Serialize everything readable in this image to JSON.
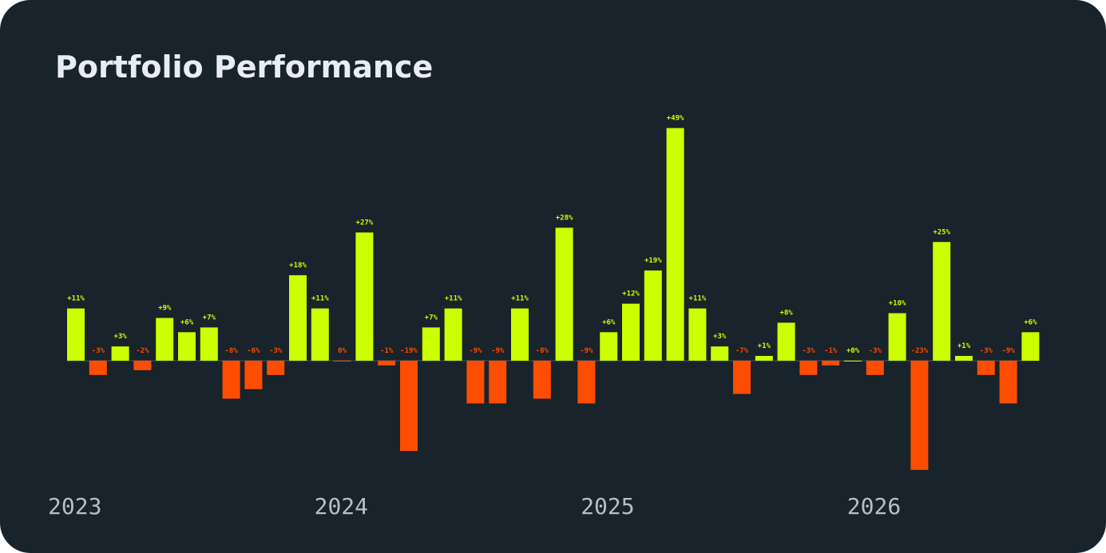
{
  "title": "Portfolio Performance",
  "colors": {
    "background": "#18232c",
    "positive": "#ccff00",
    "negative": "#ff4d00",
    "title": "#e8edf5",
    "year_label": "#b9bec6",
    "baseline": "#46535e"
  },
  "chart_data": {
    "type": "bar",
    "title": "Portfolio Performance",
    "xlabel": "",
    "ylabel": "",
    "ylim": [
      -23,
      49
    ],
    "grid": false,
    "legend": "none",
    "year_labels": [
      {
        "label": "2023",
        "at_index": 0
      },
      {
        "label": "2024",
        "at_index": 12
      },
      {
        "label": "2025",
        "at_index": 24
      },
      {
        "label": "2026",
        "at_index": 36
      }
    ],
    "values": [
      11,
      -3,
      3,
      -2,
      9,
      6,
      7,
      -8,
      -6,
      -3,
      18,
      11,
      0,
      27,
      -1,
      -19,
      7,
      11,
      -9,
      -9,
      11,
      -8,
      28,
      -9,
      6,
      12,
      19,
      49,
      11,
      3,
      -7,
      1,
      8,
      -3,
      -1,
      0,
      -3,
      10,
      -23,
      25,
      1,
      -3,
      -9,
      6
    ],
    "labels": [
      "+11%",
      "-3%",
      "+3%",
      "-2%",
      "+9%",
      "+6%",
      "+7%",
      "-8%",
      "-6%",
      "-3%",
      "+18%",
      "+11%",
      "0%",
      "+27%",
      "-1%",
      "-19%",
      "+7%",
      "+11%",
      "-9%",
      "-9%",
      "+11%",
      "-8%",
      "+28%",
      "-9%",
      "+6%",
      "+12%",
      "+19%",
      "+49%",
      "+11%",
      "+3%",
      "-7%",
      "+1%",
      "+8%",
      "-3%",
      "-1%",
      "+0%",
      "-3%",
      "+10%",
      "-23%",
      "+25%",
      "+1%",
      "-3%",
      "-9%",
      "+6%"
    ]
  }
}
